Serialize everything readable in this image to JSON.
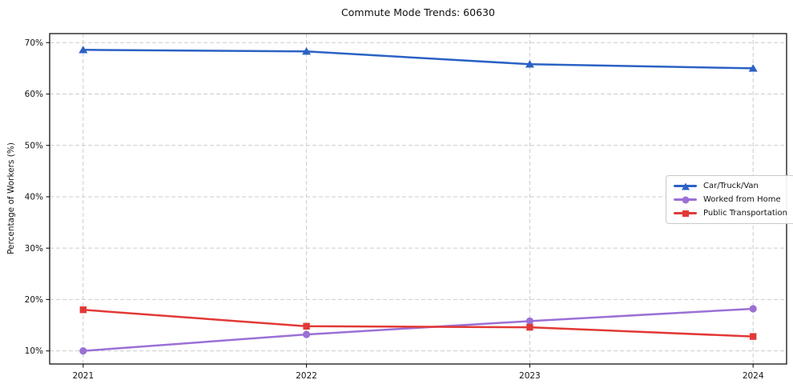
{
  "chart_data": {
    "type": "line",
    "title": "Commute Mode Trends: 60630",
    "ylabel": "Percentage of Workers (%)",
    "xlabel": "",
    "x": [
      "2021",
      "2022",
      "2023",
      "2024"
    ],
    "x_values": [
      2021,
      2022,
      2023,
      2024
    ],
    "xlim": [
      2020.85,
      2024.15
    ],
    "ylim": [
      7.45,
      71.76
    ],
    "yticks": [
      10,
      20,
      30,
      40,
      50,
      60,
      70
    ],
    "ytick_suffix": "%",
    "grid": true,
    "grid_color": "#cccccc",
    "legend_position": "center-right",
    "series": [
      {
        "name": "Car/Truck/Van",
        "color": "#2b62c5",
        "marker": "triangle",
        "values": [
          68.6,
          68.3,
          65.8,
          65.0
        ]
      },
      {
        "name": "Worked from Home",
        "color": "#9b70d6",
        "marker": "circle",
        "values": [
          10.0,
          13.2,
          15.8,
          18.2
        ]
      },
      {
        "name": "Public Transportation",
        "color": "#e23936",
        "marker": "square",
        "values": [
          18.0,
          14.8,
          14.6,
          12.8
        ]
      }
    ]
  }
}
